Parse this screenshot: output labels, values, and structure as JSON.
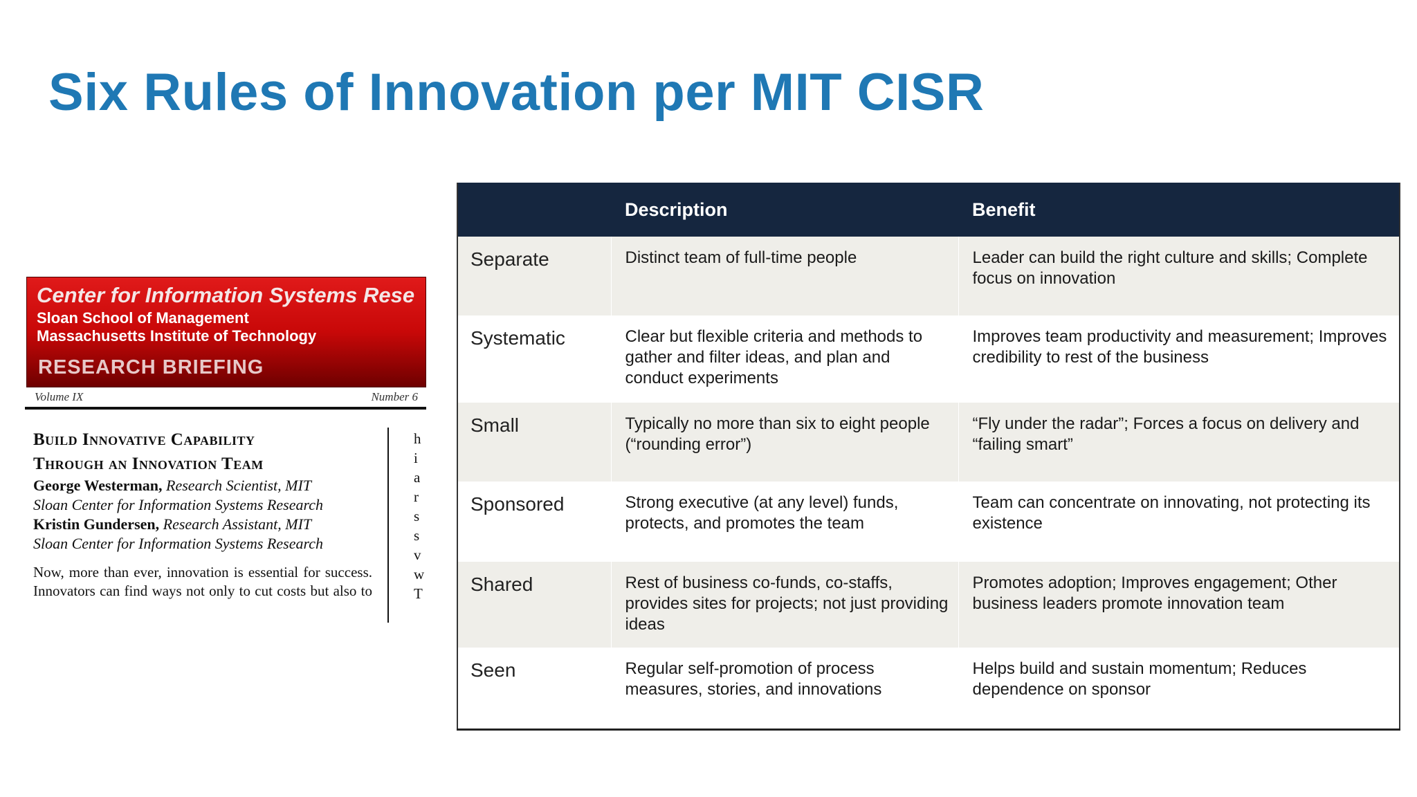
{
  "slide": {
    "title": "Six Rules of Innovation per MIT CISR"
  },
  "briefing": {
    "center": "Center for Information Systems Rese",
    "school": "Sloan School of Management",
    "institute": "Massachusetts Institute of Technology",
    "kind": "RESEARCH BRIEFING",
    "volume": "Volume IX",
    "number": "Number 6",
    "headline_line1": "Build Innovative Capability",
    "headline_line2": "Through an Innovation Team",
    "author1_name": "George Westerman,",
    "author1_role": "Research Scientist, MIT",
    "author1_affil": "Sloan Center for Information Systems Research",
    "author2_name": "Kristin Gundersen,",
    "author2_role": "Research Assistant, MIT",
    "author2_affil": "Sloan Center for Information Systems Research",
    "body": "Now, more than ever, innovation is essential for success. Innovators can find ways not only to cut costs but also to improve customer service",
    "column2_fragments": [
      "h",
      "i",
      "a",
      "r",
      "s",
      "s",
      "v",
      "w",
      "T"
    ]
  },
  "table": {
    "headers": [
      "",
      "Description",
      "Benefit"
    ],
    "rows": [
      {
        "name": "Separate",
        "description": "Distinct team of full-time people",
        "benefit": "Leader can build the right culture and skills; Complete focus on innovation"
      },
      {
        "name": "Systematic",
        "description": "Clear but flexible criteria and methods to gather and filter ideas, and plan and conduct experiments",
        "benefit": "Improves team productivity and measurement; Improves credibility to rest of the business"
      },
      {
        "name": "Small",
        "description": "Typically no more than six to eight people (“rounding error”)",
        "benefit": "“Fly under the radar”; Forces a focus on delivery and “failing smart”"
      },
      {
        "name": "Sponsored",
        "description": "Strong executive (at any level)  funds, protects, and promotes the team",
        "benefit": "Team can concentrate on innovating, not protecting its existence"
      },
      {
        "name": "Shared",
        "description": "Rest of business co-funds, co-staffs, provides sites for projects; not just providing ideas",
        "benefit": "Promotes adoption; Improves engagement; Other business leaders promote innovation team"
      },
      {
        "name": "Seen",
        "description": "Regular self-promotion of process measures, stories, and innovations",
        "benefit": "Helps build and sustain momentum; Reduces dependence on sponsor"
      }
    ]
  },
  "colors": {
    "title": "#1f78b4",
    "table_header_bg": "#15263f",
    "row_shade": "#efeee9",
    "banner_red": "#c80808"
  }
}
